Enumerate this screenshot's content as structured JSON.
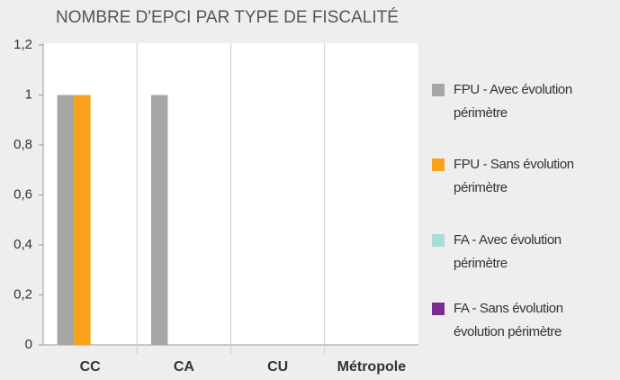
{
  "chart_data": {
    "type": "bar",
    "title": "NOMBRE D'EPCI PAR TYPE DE FISCALITÉ",
    "categories": [
      "CC",
      "CA",
      "CU",
      "Métropole"
    ],
    "series": [
      {
        "name": "FPU - Avec évolution périmètre",
        "color": "#a6a6a6",
        "values": [
          1,
          1,
          0,
          0
        ]
      },
      {
        "name": "FPU - Sans évolution périmètre",
        "color": "#f7a21b",
        "values": [
          1,
          0,
          0,
          0
        ]
      },
      {
        "name": "FA - Avec évolution périmètre",
        "color": "#a8ddd4",
        "values": [
          0,
          0,
          0,
          0
        ]
      },
      {
        "name": "FA - Sans évolution évolution périmètre",
        "color": "#7b2d8e",
        "values": [
          0,
          0,
          0,
          0
        ]
      }
    ],
    "ylim": [
      0,
      1.2
    ],
    "yticks": [
      0,
      {
        "value": 0.2,
        "label": "0,2"
      },
      {
        "value": 0.4,
        "label": "0,4"
      },
      {
        "value": 0.6,
        "label": "0,6"
      },
      {
        "value": 0.8,
        "label": "0,8"
      },
      1,
      {
        "value": 1.2,
        "label": "1,2"
      }
    ],
    "grid": false,
    "legend": "right"
  }
}
